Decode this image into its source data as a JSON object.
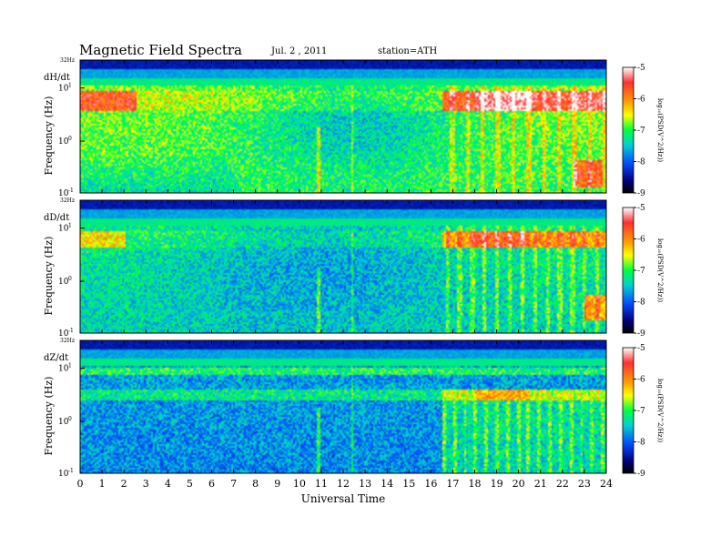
{
  "header": {
    "title": "Magnetic  Field  Spectra",
    "date": "Jul.  2  , 2011",
    "station": "station=ATH"
  },
  "chart_data": {
    "type": "heatmap",
    "x_ticks": [
      "0",
      "1",
      "2",
      "3",
      "4",
      "5",
      "6",
      "7",
      "8",
      "9",
      "10",
      "11",
      "12",
      "13",
      "14",
      "15",
      "16",
      "17",
      "18",
      "19",
      "20",
      "21",
      "22",
      "23",
      "24"
    ],
    "xlim": [
      0,
      24
    ],
    "xlabel": "Universal Time",
    "ylabel": "Frequency  (Hz)",
    "y_scale": "log",
    "y_tick_labels": {
      "top": "32Hz",
      "upper": "10",
      "upper_exp": "1",
      "middle": "10",
      "middle_exp": "0",
      "lower": "10",
      "lower_exp": "-1"
    },
    "colorbar": {
      "ticks": [
        "-5",
        "-6",
        "-7",
        "-8",
        "-9"
      ],
      "label": "log10(PSD(V^2/Hz))",
      "label_display": "log₁₀(PSD(V^2/Hz))",
      "colors": [
        "#ffffff",
        "#ff3030",
        "#ffa000",
        "#ffff00",
        "#00ff40",
        "#00d0d0",
        "#0050ff",
        "#000080",
        "#000000"
      ]
    },
    "panels": [
      {
        "name": "dH/dt"
      },
      {
        "name": "dD/dt"
      },
      {
        "name": "dZ/dt"
      }
    ]
  }
}
